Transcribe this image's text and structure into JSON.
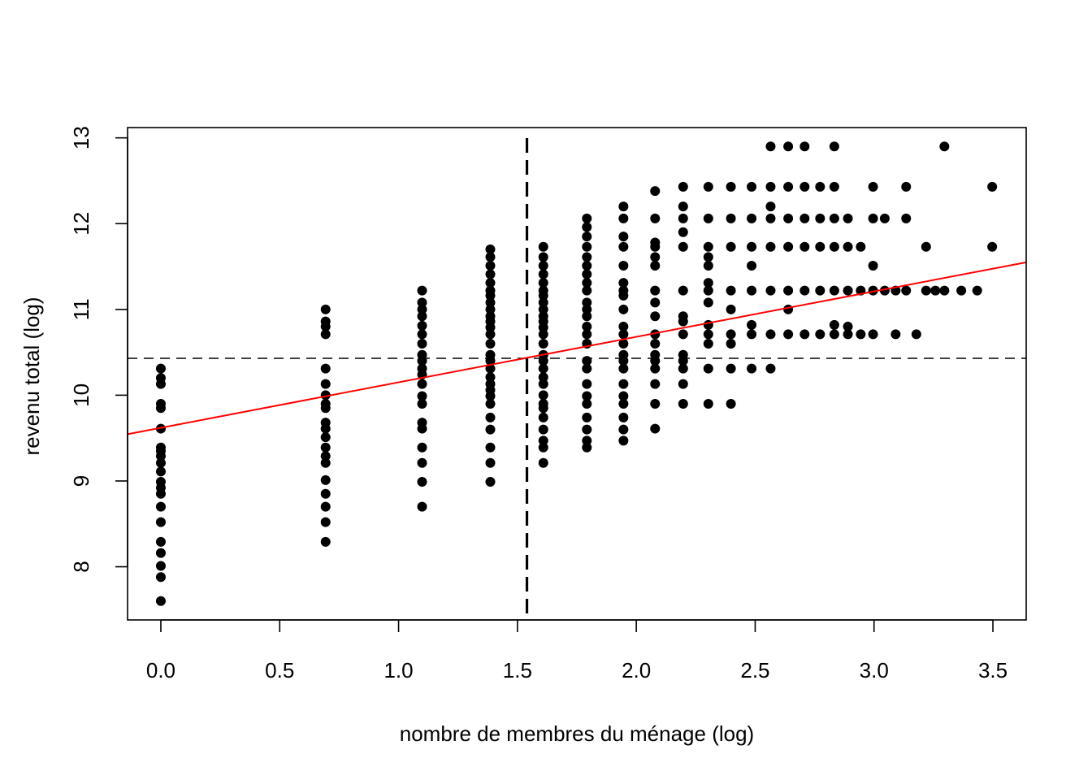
{
  "chart_data": {
    "type": "scatter",
    "title": "",
    "xlabel": "nombre de membres du ménage (log)",
    "ylabel": "revenu total (log)",
    "xlim": [
      -0.14,
      3.64
    ],
    "ylim": [
      7.38,
      13.12
    ],
    "xticks": [
      0.0,
      0.5,
      1.0,
      1.5,
      2.0,
      2.5,
      3.0,
      3.5
    ],
    "xtick_labels": [
      "0.0",
      "0.5",
      "1.0",
      "1.5",
      "2.0",
      "2.5",
      "3.0",
      "3.5"
    ],
    "yticks": [
      8,
      9,
      10,
      11,
      12,
      13
    ],
    "ytick_labels": [
      "8",
      "9",
      "10",
      "11",
      "12",
      "13"
    ],
    "grid": false,
    "colors": {
      "points": "#000000",
      "fit_line": "#ff0000",
      "reference_lines": "#000000"
    },
    "series": [
      {
        "point_groups": [
          {
            "x": 0.0,
            "y": [
              7.6,
              7.88,
              8.01,
              8.16,
              8.29,
              8.52,
              8.7,
              8.85,
              8.92,
              8.99,
              9.11,
              9.21,
              9.29,
              9.35,
              9.39,
              9.61,
              9.85,
              9.9,
              10.13,
              10.2,
              10.31
            ]
          },
          {
            "x": 0.693,
            "y": [
              8.29,
              8.52,
              8.7,
              8.85,
              9.01,
              9.21,
              9.29,
              9.39,
              9.51,
              9.61,
              9.68,
              9.85,
              9.9,
              10.0,
              10.13,
              10.31,
              10.71,
              10.8,
              10.86,
              11.0
            ]
          },
          {
            "x": 1.099,
            "y": [
              8.7,
              8.99,
              9.21,
              9.39,
              9.61,
              9.68,
              9.9,
              9.99,
              10.13,
              10.24,
              10.31,
              10.4,
              10.47,
              10.6,
              10.71,
              10.81,
              10.92,
              11.0,
              11.08,
              11.22
            ]
          },
          {
            "x": 1.386,
            "y": [
              8.99,
              9.21,
              9.39,
              9.6,
              9.74,
              9.9,
              9.99,
              10.06,
              10.13,
              10.21,
              10.31,
              10.4,
              10.47,
              10.6,
              10.71,
              10.79,
              10.86,
              10.92,
              11.0,
              11.08,
              11.16,
              11.22,
              11.31,
              11.41,
              11.51,
              11.61,
              11.7
            ]
          },
          {
            "x": 1.609,
            "y": [
              9.21,
              9.39,
              9.47,
              9.6,
              9.74,
              9.85,
              9.9,
              10.0,
              10.13,
              10.21,
              10.31,
              10.4,
              10.47,
              10.6,
              10.71,
              10.79,
              10.86,
              10.92,
              11.0,
              11.08,
              11.16,
              11.22,
              11.31,
              11.41,
              11.51,
              11.61,
              11.73
            ]
          },
          {
            "x": 1.792,
            "y": [
              9.39,
              9.47,
              9.6,
              9.74,
              9.9,
              9.99,
              10.13,
              10.31,
              10.4,
              10.6,
              10.71,
              10.8,
              10.92,
              11.0,
              11.08,
              11.22,
              11.31,
              11.41,
              11.51,
              11.61,
              11.73,
              11.85,
              11.96,
              12.06
            ]
          },
          {
            "x": 1.946,
            "y": [
              9.47,
              9.6,
              9.74,
              9.9,
              9.99,
              10.13,
              10.31,
              10.4,
              10.47,
              10.6,
              10.71,
              10.8,
              11.0,
              11.16,
              11.22,
              11.31,
              11.51,
              11.73,
              11.85,
              12.06,
              12.2
            ]
          },
          {
            "x": 2.079,
            "y": [
              9.61,
              9.9,
              10.13,
              10.31,
              10.4,
              10.47,
              10.6,
              10.71,
              10.92,
              11.08,
              11.22,
              11.51,
              11.61,
              11.73,
              11.78,
              12.06,
              12.38
            ]
          },
          {
            "x": 2.197,
            "y": [
              9.9,
              10.13,
              10.31,
              10.4,
              10.47,
              10.71,
              10.86,
              10.92,
              11.22,
              11.73,
              11.9,
              12.06,
              12.2,
              12.43
            ]
          },
          {
            "x": 2.303,
            "y": [
              9.9,
              10.31,
              10.6,
              10.71,
              10.82,
              11.08,
              11.22,
              11.31,
              11.51,
              11.61,
              11.73,
              12.06,
              12.43
            ]
          },
          {
            "x": 2.398,
            "y": [
              9.9,
              10.31,
              10.6,
              10.71,
              11.0,
              11.22,
              11.73,
              12.06,
              12.43
            ]
          },
          {
            "x": 2.485,
            "y": [
              10.31,
              10.71,
              10.82,
              11.22,
              11.51,
              11.73,
              12.06,
              12.43
            ]
          },
          {
            "x": 2.565,
            "y": [
              10.31,
              10.71,
              11.22,
              11.73,
              12.06,
              12.2,
              12.43,
              12.9
            ]
          },
          {
            "x": 2.639,
            "y": [
              10.71,
              11.0,
              11.22,
              11.73,
              12.06,
              12.43,
              12.9
            ]
          },
          {
            "x": 2.708,
            "y": [
              10.71,
              11.22,
              11.73,
              12.06,
              12.43,
              12.9
            ]
          },
          {
            "x": 2.773,
            "y": [
              10.71,
              11.22,
              11.73,
              12.06,
              12.43
            ]
          },
          {
            "x": 2.833,
            "y": [
              10.71,
              10.82,
              11.22,
              11.73,
              12.06,
              12.43,
              12.9
            ]
          },
          {
            "x": 2.89,
            "y": [
              10.71,
              10.8,
              11.22,
              11.73,
              12.06
            ]
          },
          {
            "x": 2.944,
            "y": [
              10.71,
              11.22,
              11.73
            ]
          },
          {
            "x": 2.996,
            "y": [
              10.71,
              11.22,
              11.51,
              12.06,
              12.43
            ]
          },
          {
            "x": 3.045,
            "y": [
              11.22,
              12.06
            ]
          },
          {
            "x": 3.091,
            "y": [
              10.71,
              11.22
            ]
          },
          {
            "x": 3.135,
            "y": [
              11.22,
              12.06,
              12.43
            ]
          },
          {
            "x": 3.178,
            "y": [
              10.71
            ]
          },
          {
            "x": 3.219,
            "y": [
              11.22,
              11.73
            ]
          },
          {
            "x": 3.258,
            "y": [
              11.22
            ]
          },
          {
            "x": 3.296,
            "y": [
              11.22,
              12.9
            ]
          },
          {
            "x": 3.367,
            "y": [
              11.22
            ]
          },
          {
            "x": 3.434,
            "y": [
              11.22
            ]
          },
          {
            "x": 3.497,
            "y": [
              11.73,
              12.43
            ]
          }
        ]
      }
    ],
    "fit_line": {
      "intercept": 9.62,
      "slope": 0.53
    },
    "reference_lines": [
      {
        "orientation": "vertical",
        "x": 1.54,
        "style": "dashed-thick"
      },
      {
        "orientation": "horizontal",
        "y": 10.43,
        "style": "dashed"
      }
    ]
  }
}
